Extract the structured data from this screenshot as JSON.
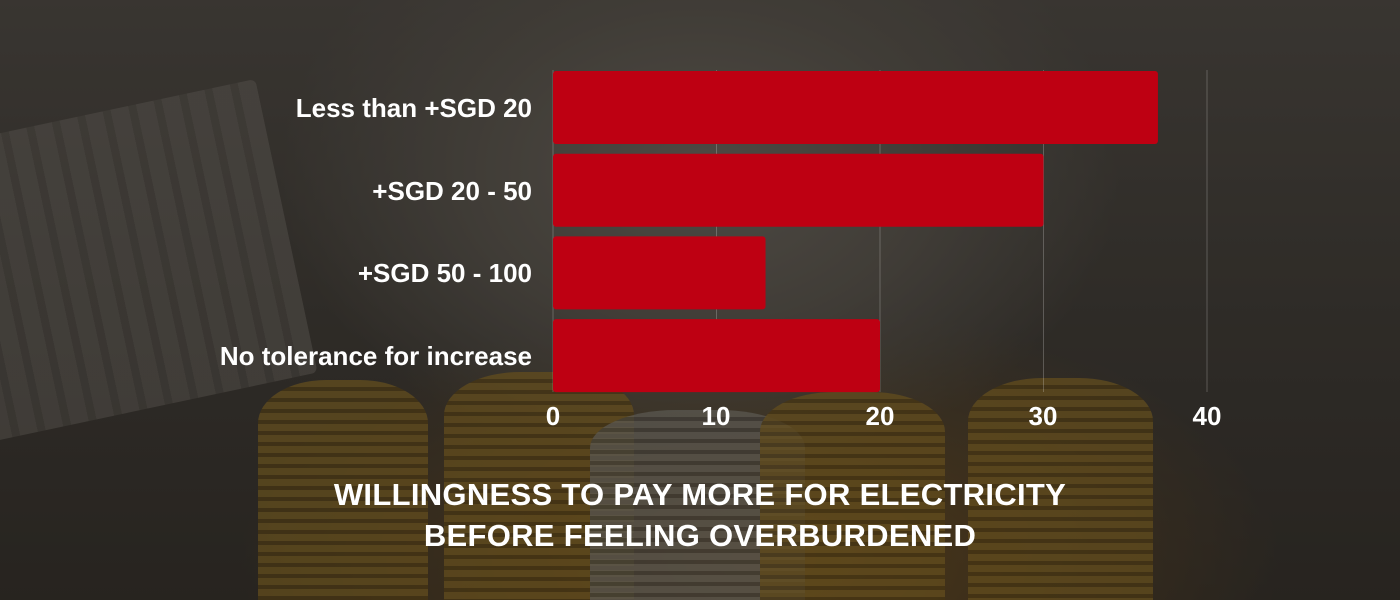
{
  "chart_data": {
    "type": "bar",
    "orientation": "horizontal",
    "title_lines": [
      "WILLINGNESS TO PAY MORE FOR ELECTRICITY",
      "BEFORE FEELING OVERBURDENED"
    ],
    "categories": [
      "Less than +SGD 20",
      "+SGD 20 - 50",
      "+SGD 50 - 100",
      "No tolerance for increase"
    ],
    "values": [
      37,
      30,
      13,
      20
    ],
    "xticks": [
      "0",
      "10",
      "20",
      "30",
      "40"
    ],
    "xlim": [
      0,
      40
    ],
    "xlabel": "",
    "ylabel": "",
    "grid": "vertical",
    "legend": "none",
    "bar_color": "#be0012"
  }
}
